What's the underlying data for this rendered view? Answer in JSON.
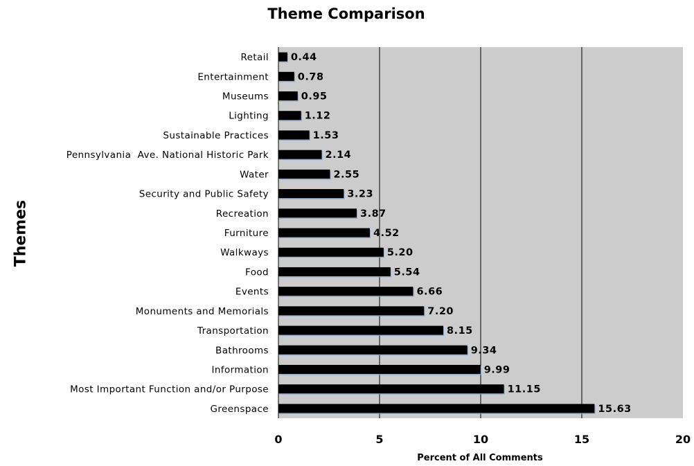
{
  "chart_data": {
    "type": "bar",
    "orientation": "horizontal",
    "title": "Theme Comparison",
    "xlabel": "Percent of All Comments",
    "ylabel": "Themes",
    "xlim": [
      0,
      20
    ],
    "xticks": [
      0,
      5,
      10,
      15,
      20
    ],
    "grid": "vertical",
    "legend": "none",
    "categories": [
      "Retail",
      "Entertainment",
      "Museums",
      "Lighting",
      "Sustainable Practices",
      "Pennsylvania  Ave. National Historic Park",
      "Water",
      "Security and Public Safety",
      "Recreation",
      "Furniture",
      "Walkways",
      "Food",
      "Events",
      "Monuments and Memorials",
      "Transportation",
      "Bathrooms",
      "Information",
      "Most Important Function and/or Purpose",
      "Greenspace"
    ],
    "values": [
      0.44,
      0.78,
      0.95,
      1.12,
      1.53,
      2.14,
      2.55,
      3.23,
      3.87,
      4.52,
      5.2,
      5.54,
      6.66,
      7.2,
      8.15,
      9.34,
      9.99,
      11.15,
      15.63
    ],
    "value_labels": [
      "0.44",
      "0.78",
      "0.95",
      "1.12",
      "1.53",
      "2.14",
      "2.55",
      "3.23",
      "3.87",
      "4.52",
      "5.20",
      "5.54",
      "6.66",
      "7.20",
      "8.15",
      "9.34",
      "9.99",
      "11.15",
      "15.63"
    ],
    "colors": {
      "plot_background": "#cccccc",
      "bar": "#000000",
      "bar_edge": "#7f9fc7",
      "gridline": "#000000"
    }
  }
}
